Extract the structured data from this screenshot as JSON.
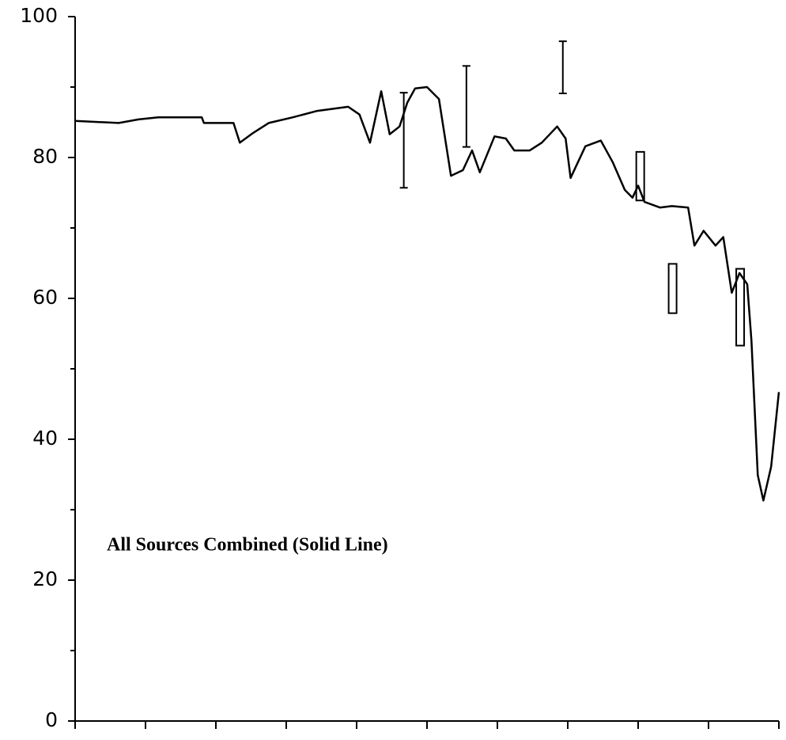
{
  "chart_data": {
    "type": "line",
    "annotation": "All Sources Combined (Solid Line)",
    "x": [
      0,
      0.62,
      0.9,
      1.18,
      1.8,
      1.83,
      2.25,
      2.34,
      2.53,
      2.75,
      3.09,
      3.43,
      3.88,
      4.04,
      4.19,
      4.35,
      4.47,
      4.61,
      4.72,
      4.83,
      5.0,
      5.17,
      5.34,
      5.51,
      5.64,
      5.75,
      5.96,
      6.12,
      6.24,
      6.46,
      6.63,
      6.85,
      6.97,
      7.04,
      7.25,
      7.47,
      7.64,
      7.81,
      7.92,
      8.0,
      8.09,
      8.31,
      8.48,
      8.71,
      8.8,
      8.93,
      9.1,
      9.21,
      9.33,
      9.44,
      9.55,
      9.61,
      9.7,
      9.78,
      9.89,
      10.0
    ],
    "values": [
      85.2,
      84.9,
      85.4,
      85.7,
      85.7,
      84.9,
      84.9,
      82.1,
      83.5,
      84.9,
      85.7,
      86.6,
      87.2,
      86.1,
      82.1,
      89.4,
      83.3,
      84.4,
      87.8,
      89.8,
      90.0,
      88.3,
      77.4,
      78.2,
      81.0,
      77.9,
      83.0,
      82.7,
      81.0,
      81.0,
      82.1,
      84.4,
      82.7,
      77.1,
      81.6,
      82.4,
      79.3,
      75.4,
      74.3,
      76.0,
      73.7,
      72.9,
      73.1,
      72.9,
      67.5,
      69.6,
      67.5,
      68.7,
      60.8,
      63.6,
      62.0,
      54.0,
      34.9,
      31.3,
      36.1,
      46.7
    ],
    "color": "#000000",
    "intervals": [
      {
        "x": 4.67,
        "low": 75.7,
        "high": 89.2,
        "style": "bar"
      },
      {
        "x": 5.56,
        "low": 81.5,
        "high": 93.0,
        "style": "bar"
      },
      {
        "x": 6.93,
        "low": 89.1,
        "high": 96.5,
        "style": "bar"
      },
      {
        "x": 8.03,
        "low": 73.9,
        "high": 80.8,
        "style": "box"
      },
      {
        "x": 8.49,
        "low": 57.9,
        "high": 64.9,
        "style": "box"
      },
      {
        "x": 9.45,
        "low": 53.3,
        "high": 64.2,
        "style": "box"
      }
    ],
    "xlim": [
      0,
      10
    ],
    "xticks": [
      0,
      1,
      2,
      3,
      4,
      5,
      6,
      7,
      8,
      9,
      10
    ],
    "xtick_labels": false,
    "ylim": [
      0,
      100
    ],
    "yticks": [
      0,
      20,
      40,
      60,
      80,
      100
    ],
    "yminorticks": [
      10,
      30,
      50,
      70,
      90
    ],
    "grid": false
  }
}
